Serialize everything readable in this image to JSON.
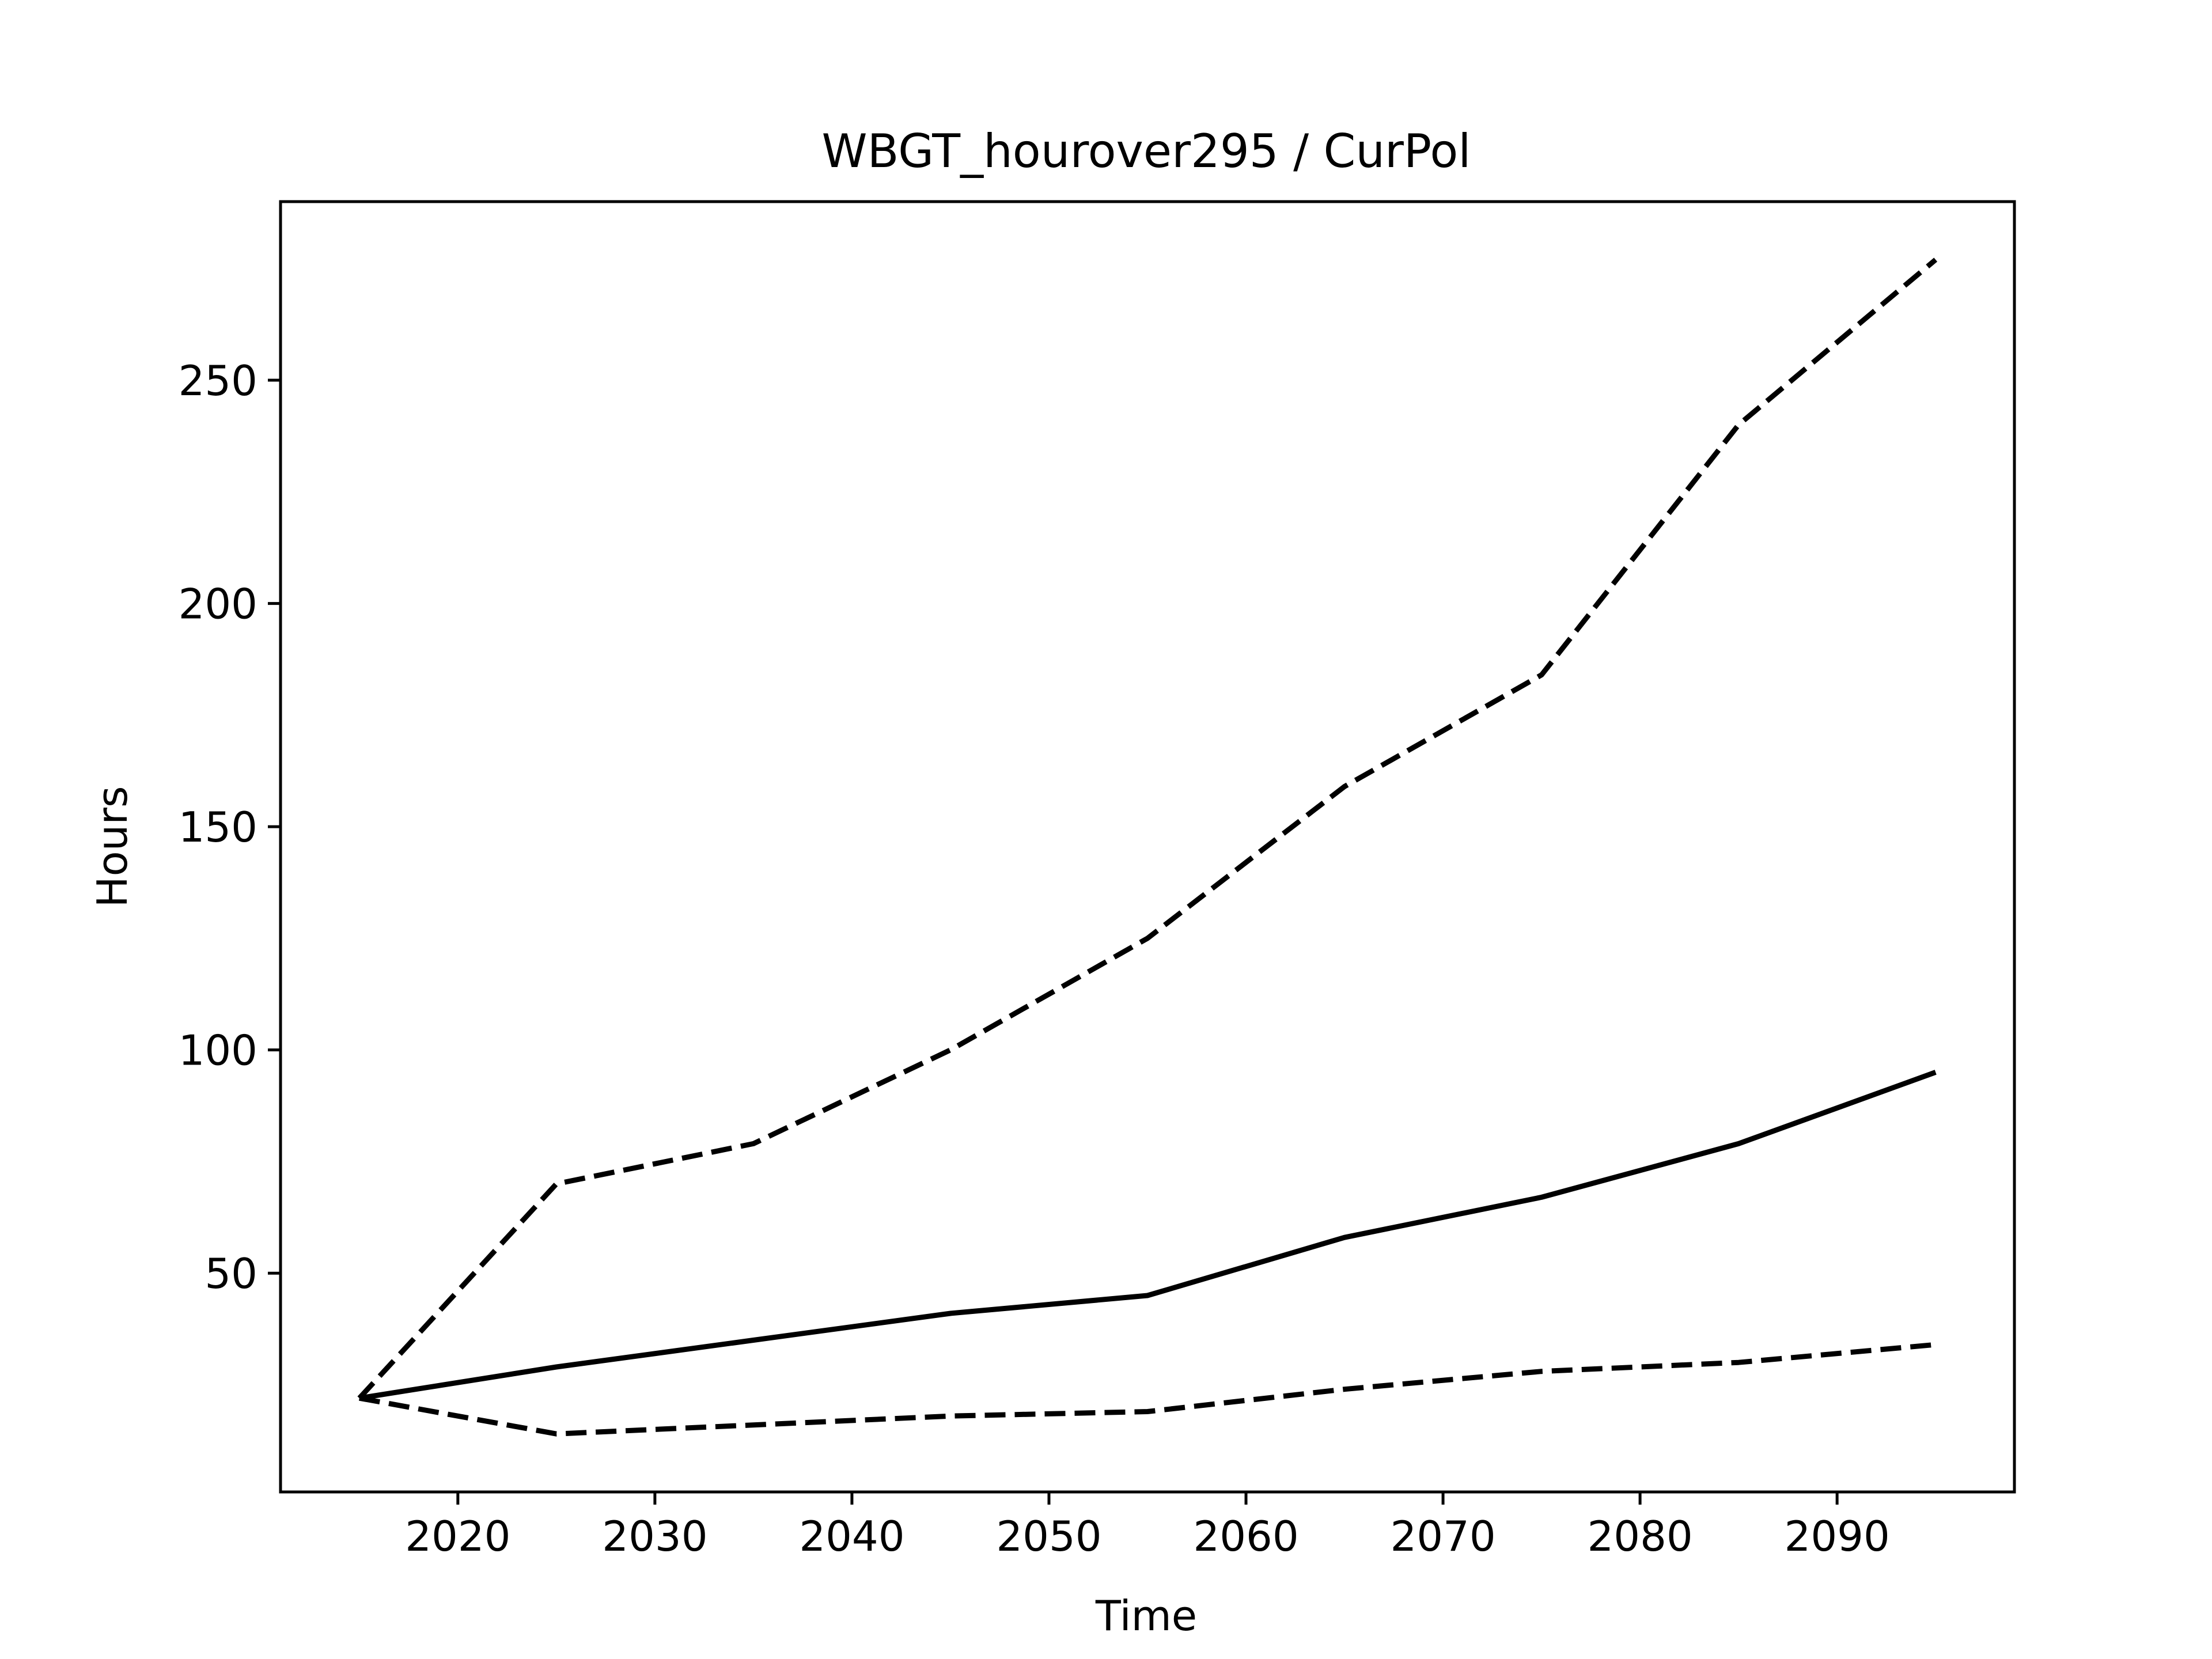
{
  "chart_data": {
    "type": "line",
    "title": "WBGT_hourover295 / CurPol",
    "xlabel": "Time",
    "ylabel": "Hours",
    "xlim": [
      2011,
      2099
    ],
    "ylim": [
      1,
      290
    ],
    "xticks": [
      2020,
      2030,
      2040,
      2050,
      2060,
      2070,
      2080,
      2090
    ],
    "yticks": [
      50,
      100,
      150,
      200,
      250
    ],
    "grid": false,
    "legend": "none",
    "x": [
      2015,
      2025,
      2035,
      2045,
      2055,
      2065,
      2075,
      2085,
      2095
    ],
    "series": [
      {
        "style": "solid",
        "values": [
          22,
          29,
          35,
          41,
          45,
          58,
          67,
          79,
          95
        ]
      },
      {
        "style": "dashed",
        "values": [
          22,
          70,
          79,
          100,
          125,
          159,
          184,
          240,
          277
        ]
      },
      {
        "style": "dashed",
        "values": [
          22,
          14,
          16,
          18,
          19,
          24,
          28,
          30,
          34
        ]
      }
    ]
  }
}
